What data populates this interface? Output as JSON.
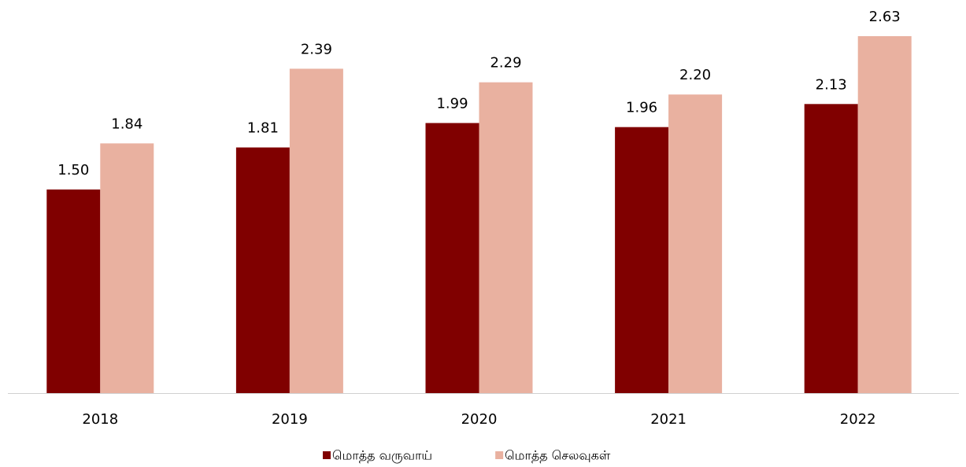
{
  "chart_data": {
    "type": "bar",
    "categories": [
      "2018",
      "2019",
      "2020",
      "2021",
      "2022"
    ],
    "series": [
      {
        "name": "மொத்த வருவாய்",
        "color": "#800000",
        "values": [
          1.5,
          1.81,
          1.99,
          1.96,
          2.13
        ],
        "value_labels": [
          "1.50",
          "1.81",
          "1.99",
          "1.96",
          "2.13"
        ]
      },
      {
        "name": "மொத்த செலவுகள்",
        "color": "#e9b1a0",
        "values": [
          1.84,
          2.39,
          2.29,
          2.2,
          2.63
        ],
        "value_labels": [
          "1.84",
          "2.39",
          "2.29",
          "2.20",
          "2.63"
        ]
      }
    ],
    "legend": "bottom"
  }
}
